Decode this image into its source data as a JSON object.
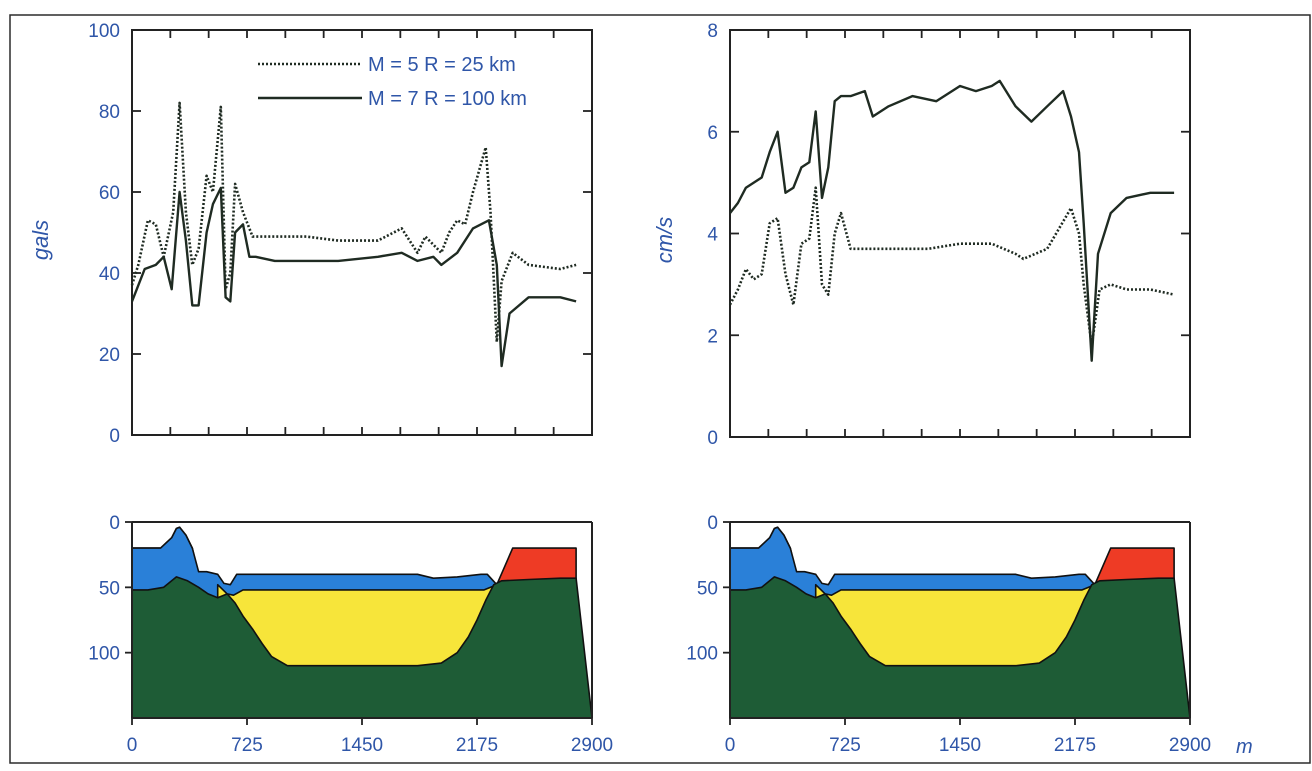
{
  "chart_data": [
    {
      "type": "line",
      "ylabel": "gals",
      "xlim": [
        0,
        2900
      ],
      "ylim": [
        0,
        100
      ],
      "yticks": [
        "0",
        "20",
        "40",
        "60",
        "80",
        "100"
      ],
      "legend": {
        "placement": "top-right"
      },
      "series": [
        {
          "name": "M = 5 R = 25 km",
          "style": "dotted",
          "x": [
            0,
            40,
            100,
            150,
            200,
            260,
            300,
            340,
            380,
            420,
            470,
            510,
            560,
            590,
            620,
            650,
            700,
            760,
            900,
            1100,
            1300,
            1550,
            1700,
            1800,
            1850,
            1900,
            1950,
            2000,
            2050,
            2100,
            2150,
            2230,
            2260,
            2300,
            2330,
            2400,
            2500,
            2700,
            2800
          ],
          "y": [
            37,
            42,
            53,
            52,
            44,
            55,
            82,
            55,
            42,
            46,
            64,
            60,
            81,
            36,
            40,
            62,
            55,
            49,
            49,
            49,
            48,
            48,
            51,
            45,
            49,
            47,
            45,
            50,
            53,
            52,
            60,
            71,
            55,
            23,
            38,
            45,
            42,
            41,
            42
          ]
        },
        {
          "name": "M = 7 R = 100 km",
          "style": "solid",
          "x": [
            0,
            30,
            80,
            150,
            200,
            250,
            300,
            340,
            380,
            420,
            470,
            510,
            560,
            590,
            620,
            650,
            700,
            740,
            780,
            900,
            1100,
            1300,
            1550,
            1700,
            1800,
            1900,
            1950,
            2050,
            2150,
            2250,
            2300,
            2330,
            2380,
            2500,
            2700,
            2800
          ],
          "y": [
            33,
            36,
            41,
            42,
            44,
            36,
            60,
            48,
            32,
            32,
            50,
            57,
            61,
            34,
            33,
            50,
            52,
            44,
            44,
            43,
            43,
            43,
            44,
            45,
            43,
            44,
            42,
            45,
            51,
            53,
            42,
            17,
            30,
            34,
            34,
            33
          ]
        }
      ]
    },
    {
      "type": "line",
      "ylabel": "cm/s",
      "xlim": [
        0,
        2900
      ],
      "ylim": [
        0,
        8
      ],
      "yticks": [
        "0",
        "2",
        "4",
        "6",
        "8"
      ],
      "series": [
        {
          "name": "M = 5 R = 25 km",
          "style": "dotted",
          "x": [
            0,
            50,
            100,
            150,
            200,
            250,
            300,
            350,
            400,
            450,
            500,
            540,
            580,
            620,
            660,
            700,
            760,
            850,
            1000,
            1250,
            1450,
            1650,
            1800,
            1850,
            2000,
            2150,
            2200,
            2230,
            2280,
            2330,
            2400,
            2500,
            2650,
            2800
          ],
          "y": [
            2.6,
            2.9,
            3.3,
            3.1,
            3.2,
            4.2,
            4.3,
            3.2,
            2.6,
            3.8,
            3.9,
            4.9,
            3.0,
            2.8,
            4.0,
            4.4,
            3.7,
            3.7,
            3.7,
            3.7,
            3.8,
            3.8,
            3.6,
            3.5,
            3.7,
            4.5,
            4.0,
            3.0,
            1.8,
            2.9,
            3.0,
            2.9,
            2.9,
            2.8
          ]
        },
        {
          "name": "M = 7 R = 100 km",
          "style": "solid",
          "x": [
            0,
            50,
            100,
            150,
            200,
            250,
            300,
            350,
            400,
            450,
            500,
            540,
            580,
            620,
            660,
            700,
            760,
            850,
            900,
            1000,
            1150,
            1300,
            1450,
            1550,
            1650,
            1700,
            1800,
            1900,
            2000,
            2100,
            2150,
            2200,
            2230,
            2280,
            2320,
            2400,
            2500,
            2650,
            2800
          ],
          "y": [
            4.4,
            4.6,
            4.9,
            5.0,
            5.1,
            5.6,
            6.0,
            4.8,
            4.9,
            5.3,
            5.4,
            6.4,
            4.7,
            5.3,
            6.6,
            6.7,
            6.7,
            6.8,
            6.3,
            6.5,
            6.7,
            6.6,
            6.9,
            6.8,
            6.9,
            7.0,
            6.5,
            6.2,
            6.5,
            6.8,
            6.3,
            5.6,
            4.2,
            1.5,
            3.6,
            4.4,
            4.7,
            4.8,
            4.8
          ]
        }
      ]
    },
    {
      "type": "area",
      "xlim": [
        0,
        2900
      ],
      "ylim": [
        150,
        0
      ],
      "yticks": [
        "0",
        "50",
        "100"
      ],
      "xticks": [
        "0",
        "725",
        "1450",
        "2175",
        "2900"
      ],
      "layers": [
        {
          "color": "#ee3b25",
          "x": [
            0,
            120,
            180,
            250,
            280,
            300,
            340,
            380,
            420,
            450,
            2300,
            2400,
            2700,
            2800
          ],
          "y": [
            20,
            20,
            20,
            12,
            5,
            4,
            10,
            20,
            42,
            48,
            48,
            20,
            20,
            20
          ]
        },
        {
          "color": "#2a80d8",
          "x": [
            0,
            120,
            180,
            250,
            280,
            300,
            340,
            380,
            420,
            470,
            540,
            580,
            620,
            660,
            1300,
            1800,
            1900,
            2050,
            2200,
            2240,
            2300
          ],
          "y": [
            20,
            20,
            20,
            12,
            5,
            4,
            10,
            20,
            38,
            38,
            40,
            47,
            48,
            40,
            40,
            40,
            43,
            42,
            40,
            40,
            48
          ]
        },
        {
          "color": "#f7e53a",
          "x": [
            540,
            600,
            640,
            700,
            2220,
            2300
          ],
          "y": [
            48,
            55,
            56,
            52,
            52,
            48
          ]
        },
        {
          "color": "#1e5c36",
          "x": [
            0,
            100,
            200,
            280,
            350,
            420,
            480,
            540,
            600,
            650,
            700,
            760,
            820,
            880,
            980,
            1100,
            1450,
            1800,
            1950,
            2050,
            2120,
            2175,
            2230,
            2280,
            2330,
            2500,
            2700,
            2800
          ],
          "y": [
            52,
            52,
            50,
            42,
            45,
            50,
            55,
            58,
            55,
            62,
            72,
            82,
            93,
            103,
            110,
            110,
            110,
            110,
            108,
            100,
            88,
            75,
            60,
            48,
            45,
            44,
            43,
            43
          ]
        }
      ]
    },
    {
      "type": "area",
      "xlim": [
        0,
        2900
      ],
      "ylim": [
        150,
        0
      ],
      "yticks": [
        "0",
        "50",
        "100"
      ],
      "xticks": [
        "0",
        "725",
        "1450",
        "2175",
        "2900"
      ],
      "x_unit": "m",
      "layers": [
        {
          "color": "#ee3b25",
          "x": [
            0,
            120,
            180,
            250,
            280,
            300,
            340,
            380,
            420,
            450,
            2300,
            2400,
            2700,
            2800
          ],
          "y": [
            20,
            20,
            20,
            12,
            5,
            4,
            10,
            20,
            42,
            48,
            48,
            20,
            20,
            20
          ]
        },
        {
          "color": "#2a80d8",
          "x": [
            0,
            120,
            180,
            250,
            280,
            300,
            340,
            380,
            420,
            470,
            540,
            580,
            620,
            660,
            1300,
            1800,
            1900,
            2050,
            2200,
            2240,
            2300
          ],
          "y": [
            20,
            20,
            20,
            12,
            5,
            4,
            10,
            20,
            38,
            38,
            40,
            47,
            48,
            40,
            40,
            40,
            43,
            42,
            40,
            40,
            48
          ]
        },
        {
          "color": "#f7e53a",
          "x": [
            540,
            600,
            640,
            700,
            2220,
            2300
          ],
          "y": [
            48,
            55,
            56,
            52,
            52,
            48
          ]
        },
        {
          "color": "#1e5c36",
          "x": [
            0,
            100,
            200,
            280,
            350,
            420,
            480,
            540,
            600,
            650,
            700,
            760,
            820,
            880,
            980,
            1100,
            1450,
            1800,
            1950,
            2050,
            2120,
            2175,
            2230,
            2280,
            2330,
            2500,
            2700,
            2800
          ],
          "y": [
            52,
            52,
            50,
            42,
            45,
            50,
            55,
            58,
            55,
            62,
            72,
            82,
            93,
            103,
            110,
            110,
            110,
            110,
            108,
            100,
            88,
            75,
            60,
            48,
            45,
            44,
            43,
            43
          ]
        }
      ]
    }
  ]
}
